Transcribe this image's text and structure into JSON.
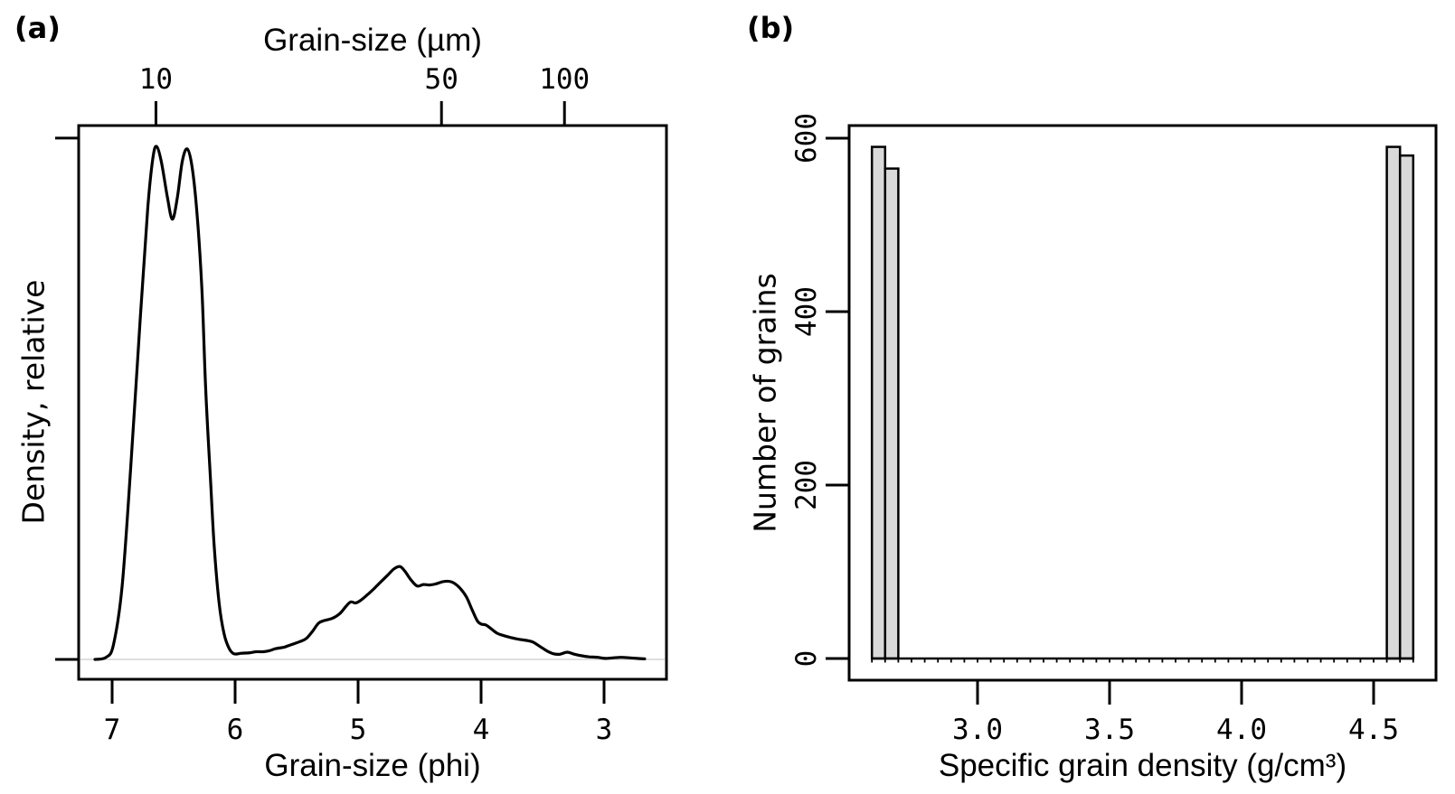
{
  "figure": {
    "panels": {
      "a": {
        "tag": "(a)",
        "top_axis_title": "Grain-size (µm)",
        "x_axis_title": "Grain-size (phi)",
        "y_axis_title": "Density, relative"
      },
      "b": {
        "tag": "(b)",
        "x_axis_title": "Specific grain density (g/cm³)",
        "y_axis_title": "Number of grains"
      }
    }
  },
  "chart_data": [
    {
      "panel": "a",
      "type": "line",
      "title": "",
      "xlabel": "Grain-size (phi)",
      "x2label": "Grain-size (µm)",
      "ylabel": "Density, relative",
      "x_reversed": true,
      "xlim": [
        7.27,
        2.49
      ],
      "ylim": [
        -0.04,
        1.04
      ],
      "x_ticks": [
        7,
        6,
        5,
        4,
        3
      ],
      "top_axis_ticks_um": [
        10,
        50,
        100
      ],
      "y_ticks_labeled": [],
      "y_tick_marks_at": [
        0,
        1.016
      ],
      "grid": false,
      "baseline_value": 0,
      "baseline_color": "#d4d4d4",
      "line_color": "#000000",
      "series": [
        {
          "name": "grain-size-density",
          "x": [
            7.14,
            7.05,
            6.99,
            6.92,
            6.85,
            6.77,
            6.71,
            6.67,
            6.64,
            6.6,
            6.55,
            6.51,
            6.47,
            6.43,
            6.39,
            6.35,
            6.31,
            6.27,
            6.24,
            6.2,
            6.17,
            6.13,
            6.09,
            6.05,
            6.01,
            5.95,
            5.88,
            5.83,
            5.77,
            5.72,
            5.67,
            5.6,
            5.54,
            5.47,
            5.42,
            5.37,
            5.32,
            5.27,
            5.21,
            5.15,
            5.1,
            5.06,
            5.02,
            4.98,
            4.92,
            4.87,
            4.82,
            4.76,
            4.71,
            4.66,
            4.62,
            4.57,
            4.52,
            4.47,
            4.42,
            4.37,
            4.3,
            4.24,
            4.18,
            4.12,
            4.07,
            4.03,
            4.0,
            3.96,
            3.92,
            3.87,
            3.81,
            3.75,
            3.69,
            3.63,
            3.58,
            3.52,
            3.46,
            3.41,
            3.36,
            3.3,
            3.24,
            3.18,
            3.12,
            3.05,
            2.99,
            2.93,
            2.86,
            2.79,
            2.73,
            2.67
          ],
          "y": [
            0,
            0.004,
            0.028,
            0.14,
            0.37,
            0.67,
            0.88,
            0.975,
            1.0,
            0.97,
            0.9,
            0.858,
            0.9,
            0.97,
            0.995,
            0.96,
            0.87,
            0.72,
            0.53,
            0.35,
            0.22,
            0.11,
            0.05,
            0.022,
            0.011,
            0.012,
            0.013,
            0.015,
            0.015,
            0.017,
            0.021,
            0.024,
            0.029,
            0.035,
            0.041,
            0.055,
            0.071,
            0.076,
            0.08,
            0.089,
            0.103,
            0.112,
            0.11,
            0.115,
            0.127,
            0.138,
            0.15,
            0.164,
            0.176,
            0.181,
            0.172,
            0.155,
            0.143,
            0.146,
            0.145,
            0.147,
            0.152,
            0.151,
            0.141,
            0.122,
            0.095,
            0.075,
            0.069,
            0.067,
            0.06,
            0.051,
            0.046,
            0.042,
            0.039,
            0.037,
            0.034,
            0.025,
            0.016,
            0.011,
            0.01,
            0.014,
            0.01,
            0.007,
            0.005,
            0.004,
            0.002,
            0.003,
            0.004,
            0.003,
            0.002,
            0.001
          ]
        }
      ]
    },
    {
      "panel": "b",
      "type": "bar",
      "title": "",
      "xlabel": "Specific grain density (g/cm³)",
      "ylabel": "Number of grains",
      "xlim": [
        2.51,
        4.74
      ],
      "ylim": [
        0,
        640
      ],
      "x_ticks": [
        3.0,
        3.5,
        4.0,
        4.5
      ],
      "y_ticks": [
        0,
        200,
        400,
        600
      ],
      "grid": false,
      "bin_width": 0.05,
      "baseline_extent": [
        2.6,
        4.65
      ],
      "bar_fill": "#d9d9d9",
      "bar_stroke": "#000000",
      "bins": [
        {
          "x0": 2.6,
          "x1": 2.65,
          "count": 590
        },
        {
          "x0": 2.65,
          "x1": 2.7,
          "count": 565
        },
        {
          "x0": 4.55,
          "x1": 4.6,
          "count": 590
        },
        {
          "x0": 4.6,
          "x1": 4.65,
          "count": 580
        }
      ]
    }
  ]
}
